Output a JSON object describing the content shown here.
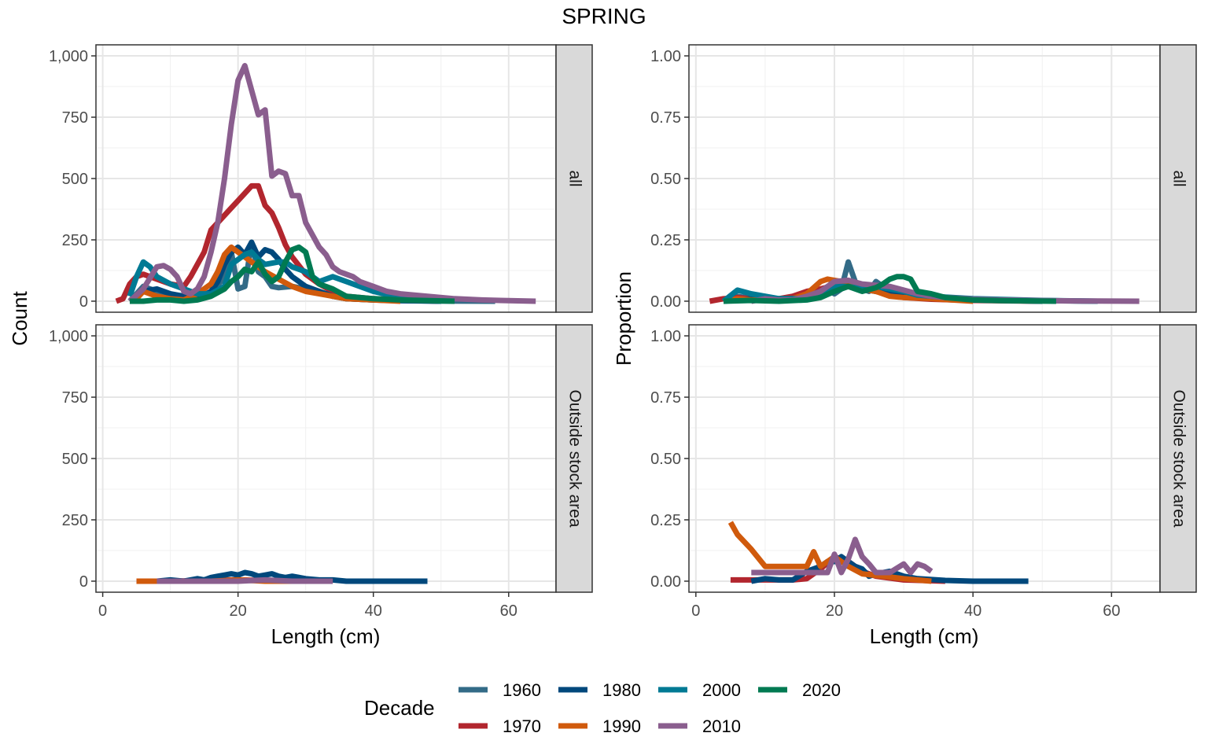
{
  "title": "SPRING",
  "legend": {
    "title": "Decade",
    "placement": "bottom",
    "items": [
      {
        "label": "1960",
        "color": "#336B87"
      },
      {
        "label": "1970",
        "color": "#B2262E"
      },
      {
        "label": "1980",
        "color": "#00487C"
      },
      {
        "label": "1990",
        "color": "#D05A0C"
      },
      {
        "label": "2000",
        "color": "#007A94"
      },
      {
        "label": "2010",
        "color": "#8A5E8E"
      },
      {
        "label": "2020",
        "color": "#007A52"
      }
    ]
  },
  "axes": {
    "count_ylabel": "Count",
    "prop_ylabel": "Proportion",
    "xlabel": "Length (cm)",
    "xlim": [
      -1,
      67
    ],
    "xticks": [
      "0",
      "20",
      "40",
      "60"
    ],
    "xtick_values": [
      0,
      20,
      40,
      60
    ],
    "count_ylim": [
      -45,
      1045
    ],
    "count_yticks": [
      "0",
      "250",
      "500",
      "750",
      "1,000"
    ],
    "count_ytick_values": [
      0,
      250,
      500,
      750,
      1000
    ],
    "prop_ylim": [
      -0.045,
      1.045
    ],
    "prop_yticks": [
      "0.00",
      "0.25",
      "0.50",
      "0.75",
      "1.00"
    ],
    "prop_ytick_values": [
      0,
      0.25,
      0.5,
      0.75,
      1.0
    ],
    "grid": true
  },
  "facets": {
    "all": "all",
    "outside": "Outside stock area"
  },
  "chart_data": [
    {
      "type": "line",
      "panel": "count-all",
      "facet": "all",
      "ylabel": "Count",
      "xlabel": "Length (cm)",
      "series": [
        {
          "name": "1960",
          "x": [
            4,
            6,
            8,
            10,
            12,
            14,
            16,
            18,
            19,
            20,
            21,
            22,
            23,
            24,
            25,
            26,
            28,
            30,
            32,
            34,
            36,
            40,
            44,
            50,
            58
          ],
          "y": [
            0,
            60,
            40,
            20,
            10,
            10,
            30,
            100,
            200,
            50,
            60,
            240,
            120,
            100,
            60,
            55,
            60,
            50,
            40,
            20,
            10,
            5,
            2,
            1,
            0
          ]
        },
        {
          "name": "1970",
          "x": [
            2,
            3,
            4,
            5,
            6,
            7,
            8,
            10,
            12,
            13,
            14,
            15,
            16,
            17,
            18,
            19,
            20,
            21,
            22,
            23,
            24,
            25,
            26,
            27,
            28,
            30,
            32,
            34,
            36,
            40,
            44,
            50
          ],
          "y": [
            0,
            10,
            70,
            100,
            110,
            100,
            90,
            70,
            60,
            100,
            150,
            200,
            290,
            320,
            350,
            380,
            410,
            440,
            470,
            470,
            390,
            360,
            300,
            230,
            180,
            110,
            70,
            40,
            20,
            10,
            5,
            0
          ]
        },
        {
          "name": "1980",
          "x": [
            4,
            6,
            8,
            10,
            12,
            14,
            16,
            17,
            18,
            19,
            20,
            21,
            22,
            23,
            24,
            25,
            26,
            27,
            28,
            30,
            32,
            34,
            36,
            40,
            44,
            50
          ],
          "y": [
            0,
            40,
            50,
            30,
            20,
            10,
            40,
            80,
            150,
            200,
            220,
            190,
            240,
            180,
            210,
            200,
            170,
            130,
            100,
            60,
            40,
            20,
            10,
            5,
            2,
            0
          ]
        },
        {
          "name": "1990",
          "x": [
            5,
            6,
            8,
            10,
            12,
            14,
            16,
            17,
            18,
            19,
            20,
            21,
            22,
            23,
            24,
            26,
            28,
            30,
            32,
            34,
            36,
            40,
            44
          ],
          "y": [
            10,
            40,
            20,
            10,
            5,
            30,
            70,
            120,
            190,
            220,
            200,
            180,
            160,
            140,
            120,
            90,
            60,
            40,
            30,
            20,
            10,
            5,
            0
          ]
        },
        {
          "name": "2000",
          "x": [
            4,
            5,
            6,
            7,
            8,
            10,
            12,
            14,
            16,
            18,
            19,
            20,
            21,
            22,
            23,
            24,
            26,
            27,
            28,
            30,
            32,
            34,
            36,
            38,
            40,
            44,
            50
          ],
          "y": [
            20,
            100,
            160,
            140,
            100,
            70,
            50,
            30,
            30,
            60,
            150,
            170,
            190,
            200,
            170,
            150,
            160,
            160,
            140,
            120,
            80,
            100,
            80,
            60,
            40,
            15,
            0
          ]
        },
        {
          "name": "2010",
          "x": [
            4,
            6,
            8,
            9,
            10,
            11,
            12,
            13,
            14,
            15,
            16,
            17,
            18,
            19,
            20,
            21,
            22,
            23,
            24,
            25,
            26,
            27,
            28,
            29,
            30,
            31,
            32,
            33,
            34,
            35,
            36,
            37,
            38,
            40,
            42,
            44,
            48,
            52,
            56,
            60,
            64
          ],
          "y": [
            0,
            50,
            140,
            145,
            130,
            100,
            40,
            30,
            50,
            100,
            200,
            320,
            500,
            720,
            900,
            960,
            860,
            760,
            780,
            510,
            530,
            520,
            430,
            430,
            320,
            270,
            220,
            190,
            140,
            120,
            110,
            100,
            80,
            60,
            40,
            30,
            20,
            10,
            5,
            2,
            0
          ]
        },
        {
          "name": "2020",
          "x": [
            4,
            6,
            8,
            10,
            12,
            14,
            16,
            18,
            19,
            20,
            21,
            22,
            23,
            24,
            25,
            26,
            27,
            28,
            29,
            30,
            31,
            32,
            34,
            36,
            40,
            44,
            52
          ],
          "y": [
            0,
            0,
            5,
            5,
            0,
            5,
            20,
            50,
            80,
            100,
            130,
            120,
            160,
            110,
            80,
            100,
            160,
            210,
            220,
            200,
            100,
            70,
            50,
            20,
            10,
            5,
            0
          ]
        }
      ]
    },
    {
      "type": "line",
      "panel": "prop-all",
      "facet": "all",
      "ylabel": "Proportion",
      "xlabel": "Length (cm)",
      "series": [
        {
          "name": "1960",
          "x": [
            4,
            6,
            8,
            10,
            12,
            14,
            16,
            18,
            19,
            20,
            21,
            22,
            23,
            24,
            25,
            26,
            28,
            30,
            34,
            40,
            50,
            58
          ],
          "y": [
            0,
            0.02,
            0.01,
            0.005,
            0.003,
            0.005,
            0.01,
            0.02,
            0.05,
            0.03,
            0.05,
            0.16,
            0.08,
            0.05,
            0.04,
            0.08,
            0.04,
            0.03,
            0.02,
            0.005,
            0.002,
            0
          ]
        },
        {
          "name": "1970",
          "x": [
            2,
            4,
            6,
            8,
            10,
            12,
            14,
            16,
            18,
            20,
            22,
            24,
            26,
            28,
            30,
            34,
            40,
            50
          ],
          "y": [
            0,
            0.01,
            0.015,
            0.01,
            0.01,
            0.01,
            0.02,
            0.04,
            0.05,
            0.065,
            0.07,
            0.06,
            0.04,
            0.025,
            0.015,
            0.008,
            0.003,
            0
          ]
        },
        {
          "name": "1980",
          "x": [
            4,
            8,
            12,
            14,
            16,
            18,
            20,
            21,
            22,
            24,
            26,
            28,
            30,
            34,
            40,
            50
          ],
          "y": [
            0,
            0.01,
            0.005,
            0.005,
            0.02,
            0.04,
            0.06,
            0.07,
            0.06,
            0.05,
            0.04,
            0.03,
            0.02,
            0.01,
            0.005,
            0
          ]
        },
        {
          "name": "1990",
          "x": [
            5,
            6,
            8,
            10,
            12,
            14,
            16,
            18,
            19,
            20,
            21,
            22,
            24,
            26,
            28,
            30,
            34,
            40
          ],
          "y": [
            0.005,
            0.01,
            0.005,
            0.005,
            0.005,
            0.01,
            0.03,
            0.08,
            0.09,
            0.085,
            0.08,
            0.07,
            0.05,
            0.04,
            0.02,
            0.015,
            0.01,
            0
          ]
        },
        {
          "name": "2000",
          "x": [
            4,
            6,
            8,
            10,
            12,
            14,
            16,
            18,
            20,
            22,
            24,
            26,
            28,
            30,
            32,
            34,
            40,
            50,
            58
          ],
          "y": [
            0,
            0.045,
            0.03,
            0.02,
            0.01,
            0.01,
            0.01,
            0.03,
            0.06,
            0.06,
            0.05,
            0.06,
            0.05,
            0.04,
            0.025,
            0.02,
            0.01,
            0.003,
            0
          ]
        },
        {
          "name": "2010",
          "x": [
            8,
            10,
            12,
            14,
            16,
            18,
            20,
            22,
            24,
            26,
            28,
            30,
            32,
            34,
            36,
            40,
            44,
            50,
            56,
            64
          ],
          "y": [
            0,
            0.01,
            0.005,
            0.005,
            0.02,
            0.04,
            0.08,
            0.085,
            0.07,
            0.065,
            0.06,
            0.045,
            0.03,
            0.02,
            0.015,
            0.008,
            0.005,
            0.002,
            0.001,
            0
          ]
        },
        {
          "name": "2020",
          "x": [
            4,
            8,
            12,
            16,
            18,
            20,
            22,
            24,
            26,
            27,
            28,
            29,
            30,
            31,
            32,
            34,
            36,
            40,
            44,
            52
          ],
          "y": [
            0,
            0.003,
            0,
            0.005,
            0.015,
            0.04,
            0.06,
            0.04,
            0.055,
            0.07,
            0.09,
            0.1,
            0.1,
            0.09,
            0.04,
            0.03,
            0.015,
            0.005,
            0.002,
            0
          ]
        }
      ]
    },
    {
      "type": "line",
      "panel": "count-outside",
      "facet": "Outside stock area",
      "ylabel": "Count",
      "xlabel": "Length (cm)",
      "series": [
        {
          "name": "1970",
          "x": [
            5,
            10,
            20,
            30
          ],
          "y": [
            0,
            0,
            5,
            0
          ]
        },
        {
          "name": "1980",
          "x": [
            8,
            10,
            12,
            14,
            15,
            16,
            17,
            18,
            19,
            20,
            21,
            22,
            23,
            24,
            25,
            26,
            27,
            28,
            30,
            32,
            34,
            36,
            40,
            48
          ],
          "y": [
            0,
            5,
            0,
            10,
            5,
            15,
            20,
            25,
            30,
            25,
            35,
            30,
            20,
            25,
            30,
            20,
            15,
            20,
            10,
            5,
            5,
            0,
            0,
            0
          ]
        },
        {
          "name": "1990",
          "x": [
            5,
            8,
            12,
            16,
            20,
            24,
            30,
            34
          ],
          "y": [
            0,
            0,
            0,
            0,
            5,
            0,
            0,
            0
          ]
        },
        {
          "name": "2010",
          "x": [
            8,
            12,
            16,
            20,
            24,
            28,
            32,
            34
          ],
          "y": [
            0,
            0,
            0,
            0,
            5,
            0,
            0,
            0
          ]
        }
      ]
    },
    {
      "type": "line",
      "panel": "prop-outside",
      "facet": "Outside stock area",
      "ylabel": "Proportion",
      "xlabel": "Length (cm)",
      "series": [
        {
          "name": "1970",
          "x": [
            5,
            8,
            10,
            14,
            16,
            18,
            20,
            22,
            24,
            26,
            30,
            36
          ],
          "y": [
            0.005,
            0.005,
            0.005,
            0.005,
            0.01,
            0.05,
            0.1,
            0.08,
            0.04,
            0.02,
            0.005,
            0
          ]
        },
        {
          "name": "1980",
          "x": [
            8,
            10,
            12,
            14,
            16,
            18,
            19,
            20,
            21,
            22,
            23,
            24,
            25,
            26,
            28,
            30,
            32,
            36,
            40,
            48
          ],
          "y": [
            0,
            0.01,
            0.005,
            0.005,
            0.04,
            0.06,
            0.08,
            0.08,
            0.1,
            0.08,
            0.06,
            0.05,
            0.02,
            0.03,
            0.04,
            0.02,
            0.01,
            0.003,
            0,
            0
          ]
        },
        {
          "name": "1990",
          "x": [
            5,
            6,
            8,
            10,
            12,
            14,
            16,
            17,
            18,
            20,
            22,
            24,
            30,
            34
          ],
          "y": [
            0.24,
            0.19,
            0.13,
            0.06,
            0.06,
            0.06,
            0.06,
            0.12,
            0.06,
            0.1,
            0.06,
            0.03,
            0.01,
            0
          ]
        },
        {
          "name": "2010",
          "x": [
            8,
            10,
            12,
            14,
            16,
            18,
            19,
            20,
            21,
            22,
            23,
            24,
            25,
            26,
            28,
            30,
            31,
            32,
            33,
            34
          ],
          "y": [
            0.035,
            0.035,
            0.035,
            0.035,
            0.035,
            0.035,
            0.035,
            0.11,
            0.035,
            0.09,
            0.17,
            0.1,
            0.07,
            0.035,
            0.035,
            0.07,
            0.035,
            0.07,
            0.06,
            0.04
          ]
        }
      ]
    }
  ]
}
